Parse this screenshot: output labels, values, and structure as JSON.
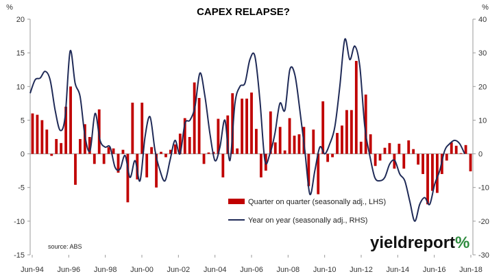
{
  "chart_data": {
    "type": "bar+line",
    "title": "CAPEX RELAPSE?",
    "left_axis": {
      "unit": "%",
      "ylim": [
        -15,
        20
      ],
      "ticks": [
        20,
        15,
        10,
        5,
        0,
        -5,
        -10,
        -15
      ]
    },
    "right_axis": {
      "unit": "%",
      "ylim": [
        -30,
        40
      ],
      "ticks": [
        40,
        30,
        20,
        10,
        0,
        -10,
        -20,
        -30
      ]
    },
    "x_tick_labels": [
      "Jun-94",
      "Jun-96",
      "Jun-98",
      "Jun-00",
      "Jun-02",
      "Jun-04",
      "Jun-06",
      "Jun-08",
      "Jun-10",
      "Jun-12",
      "Jun-14",
      "Jun-16",
      "Jun-18"
    ],
    "x_start": "Jun-94",
    "x_end": "Jun-18",
    "grid": false,
    "legend_position": "bottom-right",
    "colors": {
      "bars": "#c00000",
      "line": "#1f2a57"
    },
    "series": [
      {
        "name": "Quarter on quarter (seasonally adj., LHS)",
        "type": "bar",
        "axis": "left",
        "values": [
          6.0,
          5.8,
          5.0,
          3.6,
          -0.3,
          2.2,
          1.6,
          7.0,
          10.0,
          -4.6,
          2.2,
          4.4,
          2.5,
          -1.5,
          6.6,
          -1.5,
          1.0,
          0.8,
          -2.8,
          0.6,
          -7.2,
          7.6,
          -3.8,
          7.6,
          -3.5,
          1.0,
          -5.0,
          0.3,
          -0.5,
          0.6,
          1.4,
          3.0,
          5.3,
          2.5,
          10.6,
          8.3,
          -1.5,
          0.2,
          0.3,
          5.2,
          -3.5,
          5.7,
          9.0,
          0.8,
          8.2,
          8.2,
          9.1,
          3.7,
          -3.5,
          -2.5,
          6.3,
          1.7,
          4.0,
          0.5,
          5.3,
          2.7,
          2.9,
          4.0,
          -4.8,
          3.6,
          -6.0,
          7.8,
          -1.2,
          -0.5,
          3.1,
          4.2,
          6.5,
          6.5,
          13.8,
          1.8,
          8.8,
          2.9,
          -1.8,
          -1.0,
          0.9,
          1.6,
          -2.2,
          1.5,
          -2.2,
          2.0,
          0.7,
          -1.6,
          -3.0,
          -7.5,
          -5.5,
          -5.8,
          -3.0,
          -1.0,
          1.7,
          1.2,
          0.1,
          1.3,
          -2.6
        ]
      },
      {
        "name": "Year on year (seasonally adj., RHS)",
        "type": "line",
        "axis": "right",
        "values": [
          18.0,
          22.0,
          22.5,
          24.5,
          22.0,
          13.0,
          7.0,
          11.0,
          30.5,
          21.0,
          17.0,
          5.0,
          1.0,
          12.0,
          4.0,
          2.0,
          2.0,
          -4.0,
          -4.5,
          -0.5,
          -7.0,
          -2.0,
          -8.0,
          5.0,
          11.0,
          1.0,
          -5.0,
          -8.0,
          -2.0,
          4.0,
          0.0,
          9.0,
          10.0,
          14.0,
          24.0,
          17.0,
          6.0,
          -2.0,
          2.0,
          10.0,
          -2.0,
          15.0,
          20.0,
          21.0,
          28.0,
          29.0,
          16.0,
          -2.0,
          0.0,
          6.0,
          15.0,
          13.0,
          25.0,
          23.5,
          13.0,
          1.0,
          -12.0,
          -5.0,
          2.0,
          0.0,
          3.0,
          8.0,
          20.0,
          34.0,
          28.0,
          32.0,
          26.0,
          8.0,
          -0.5,
          -7.0,
          -8.0,
          -7.0,
          -3.0,
          -2.0,
          -6.0,
          -8.0,
          -14.0,
          -20.0,
          -15.0,
          -13.0,
          -15.0,
          -9.0,
          -5.0,
          1.0,
          3.0,
          4.0,
          3.0,
          0.0
        ]
      }
    ],
    "source": "source: ABS",
    "logo": {
      "text_main": "yieldreport",
      "text_pct": "%"
    }
  }
}
